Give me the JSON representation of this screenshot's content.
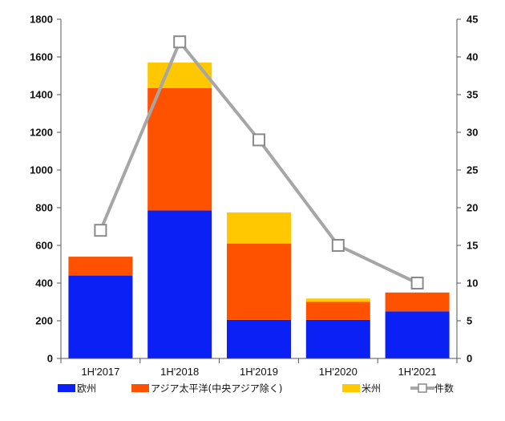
{
  "chart_data": {
    "type": "bar",
    "stacked": true,
    "categories": [
      "1H'2017",
      "1H'2018",
      "1H'2019",
      "1H'2020",
      "1H'2021"
    ],
    "series": [
      {
        "name": "欧州",
        "values": [
          440,
          785,
          205,
          205,
          250
        ],
        "color": "#0a20f5",
        "axis": "left"
      },
      {
        "name": "アジア太平洋(中央アジア除く)",
        "values": [
          100,
          650,
          405,
          95,
          100
        ],
        "color": "#ff5200",
        "axis": "left"
      },
      {
        "name": "米州",
        "values": [
          0,
          135,
          165,
          18,
          0
        ],
        "color": "#ffc800",
        "axis": "left"
      }
    ],
    "line_series": {
      "name": "件数",
      "type": "line",
      "axis": "right",
      "values": [
        17,
        42,
        29,
        15,
        10
      ],
      "color": "#a6a6a6"
    },
    "yleft": {
      "min": 0,
      "max": 1800,
      "step": 200
    },
    "yright": {
      "min": 0,
      "max": 45,
      "step": 5
    },
    "legend_position": "bottom",
    "grid": false
  }
}
